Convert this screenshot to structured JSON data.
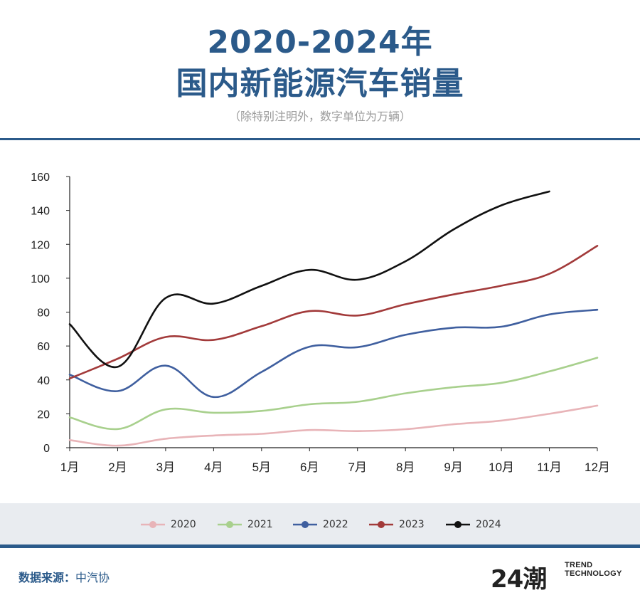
{
  "header": {
    "title_line1": "2020-2024年",
    "title_line2": "国内新能源汽车销量",
    "subtitle": "（除特别注明外，数字单位为万辆）"
  },
  "chart_data": {
    "type": "line",
    "title": "2020-2024年国内新能源汽车销量",
    "ylabel": "万辆",
    "xlabel": "",
    "categories": [
      "1月",
      "2月",
      "3月",
      "4月",
      "5月",
      "6月",
      "7月",
      "8月",
      "9月",
      "10月",
      "11月",
      "12月"
    ],
    "ylim": [
      0,
      160
    ],
    "yticks": [
      0,
      20,
      40,
      60,
      80,
      100,
      120,
      140,
      160
    ],
    "grid": false,
    "legend_position": "bottom",
    "series": [
      {
        "name": "2020",
        "color": "#e8b4b8",
        "values": [
          4.5,
          1.2,
          5.3,
          7.2,
          8.2,
          10.4,
          9.8,
          10.9,
          13.8,
          16.0,
          20.0,
          24.8
        ]
      },
      {
        "name": "2021",
        "color": "#a8d08d",
        "values": [
          17.9,
          11.0,
          22.6,
          20.6,
          21.7,
          25.6,
          27.1,
          32.1,
          35.7,
          38.3,
          45.0,
          53.1
        ]
      },
      {
        "name": "2022",
        "color": "#3f5f9f",
        "values": [
          43.1,
          33.4,
          48.4,
          29.9,
          44.7,
          59.6,
          59.3,
          66.6,
          70.8,
          71.4,
          78.6,
          81.4
        ]
      },
      {
        "name": "2023",
        "color": "#a23a3a",
        "values": [
          40.8,
          52.5,
          65.3,
          63.6,
          71.7,
          80.6,
          78.0,
          84.6,
          90.4,
          95.6,
          102.6,
          119.1
        ]
      },
      {
        "name": "2024",
        "color": "#111111",
        "values": [
          72.9,
          47.7,
          88.3,
          85.0,
          95.5,
          104.9,
          99.1,
          110.0,
          128.7,
          143.0,
          151.2,
          null
        ]
      }
    ]
  },
  "footer": {
    "source_label": "数据来源：",
    "source_value": "中汽协",
    "logo_number": "24潮",
    "logo_line1": "TREND",
    "logo_line2": "TECHNOLOGY"
  }
}
